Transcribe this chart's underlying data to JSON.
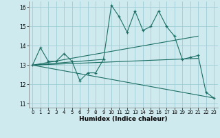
{
  "xlabel": "Humidex (Indice chaleur)",
  "xlim": [
    -0.5,
    23.5
  ],
  "ylim": [
    10.8,
    16.3
  ],
  "yticks": [
    11,
    12,
    13,
    14,
    15,
    16
  ],
  "xticks": [
    0,
    1,
    2,
    3,
    4,
    5,
    6,
    7,
    8,
    9,
    10,
    11,
    12,
    13,
    14,
    15,
    16,
    17,
    18,
    19,
    20,
    21,
    22,
    23
  ],
  "bg_color": "#ceeaee",
  "grid_color": "#a0cdd4",
  "line_color": "#1a6e64",
  "data_x": [
    0,
    1,
    2,
    3,
    4,
    5,
    6,
    7,
    8,
    9,
    10,
    11,
    12,
    13,
    14,
    15,
    16,
    17,
    18,
    19,
    20,
    21,
    22,
    23
  ],
  "data_y": [
    13.0,
    13.9,
    13.2,
    13.2,
    13.6,
    13.2,
    12.2,
    12.6,
    12.6,
    13.3,
    16.1,
    15.5,
    14.7,
    15.8,
    14.8,
    15.0,
    15.8,
    15.0,
    14.5,
    13.3,
    13.4,
    13.5,
    11.6,
    11.3
  ],
  "trend1_x": [
    0,
    21
  ],
  "trend1_y": [
    13.0,
    14.5
  ],
  "trend2_x": [
    0,
    21
  ],
  "trend2_y": [
    13.0,
    13.35
  ],
  "trend3_x": [
    0,
    23
  ],
  "trend3_y": [
    13.0,
    11.3
  ],
  "trend4_x": [
    0,
    9
  ],
  "trend4_y": [
    13.0,
    13.3
  ]
}
